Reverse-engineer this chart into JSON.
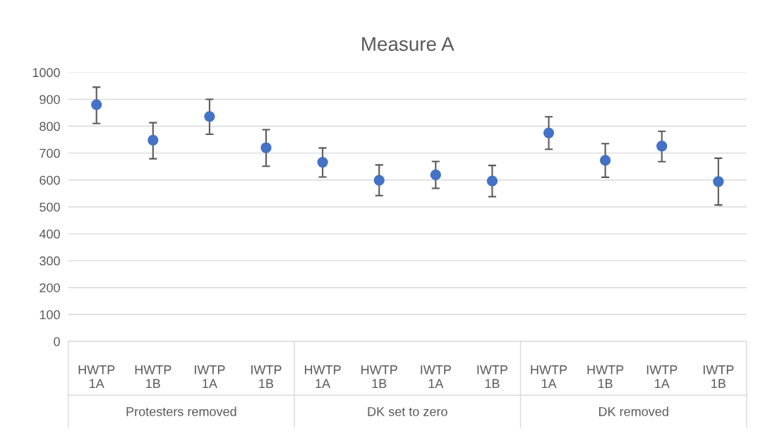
{
  "chart_data": {
    "type": "scatter",
    "title": "Measure A",
    "categories": [
      "HWTP 1A",
      "HWTP 1B",
      "IWTP 1A",
      "IWTP 1B",
      "HWTP 1A",
      "HWTP 1B",
      "IWTP 1A",
      "IWTP 1B",
      "HWTP 1A",
      "HWTP 1B",
      "IWTP 1A",
      "IWTP 1B"
    ],
    "values": [
      880,
      748,
      836,
      720,
      666,
      599,
      619,
      596,
      775,
      673,
      726,
      594
    ],
    "errors": [
      [
        810,
        945
      ],
      [
        679,
        813
      ],
      [
        770,
        900
      ],
      [
        651,
        787
      ],
      [
        611,
        719
      ],
      [
        542,
        656
      ],
      [
        569,
        669
      ],
      [
        538,
        654
      ],
      [
        714,
        835
      ],
      [
        610,
        735
      ],
      [
        668,
        781
      ],
      [
        507,
        681
      ]
    ],
    "color": "#4472c4",
    "marker": "circle",
    "ylim": [
      0,
      1000
    ],
    "yticks": [
      0,
      100,
      200,
      300,
      400,
      500,
      600,
      700,
      800,
      900,
      1000
    ],
    "grid": "y",
    "annotations": [
      "Protesters removed",
      "DK set to zero",
      "DK removed"
    ]
  }
}
